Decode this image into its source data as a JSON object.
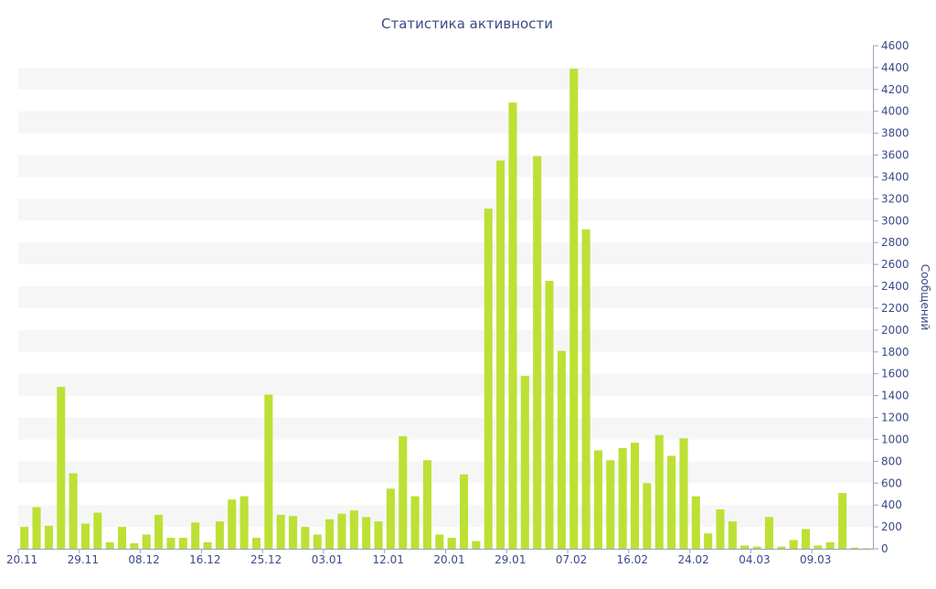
{
  "chart_data": {
    "type": "bar",
    "title": "Статистика активности",
    "xlabel": "",
    "ylabel": "Сообщений",
    "ylim": [
      0,
      4600
    ],
    "y_ticks": [
      "0",
      "200",
      "400",
      "600",
      "800",
      "1000",
      "1200",
      "1400",
      "1600",
      "1800",
      "2000",
      "2200",
      "2400",
      "2600",
      "2800",
      "3000",
      "3200",
      "3400",
      "3600",
      "3800",
      "4000",
      "4200",
      "4400",
      "4600"
    ],
    "y_axis_side": "right",
    "grid": "alternating horizontal bands",
    "legend": "none",
    "x_tick_labels": [
      {
        "label": "20.11",
        "index": 0
      },
      {
        "label": "29.11",
        "index": 5
      },
      {
        "label": "08.12",
        "index": 10
      },
      {
        "label": "16.12",
        "index": 15
      },
      {
        "label": "25.12",
        "index": 20
      },
      {
        "label": "03.01",
        "index": 25
      },
      {
        "label": "12.01",
        "index": 30
      },
      {
        "label": "20.01",
        "index": 35
      },
      {
        "label": "29.01",
        "index": 40
      },
      {
        "label": "07.02",
        "index": 45
      },
      {
        "label": "16.02",
        "index": 50
      },
      {
        "label": "24.02",
        "index": 55
      },
      {
        "label": "04.03",
        "index": 60
      },
      {
        "label": "09.03",
        "index": 65
      }
    ],
    "values": [
      200,
      380,
      210,
      1480,
      690,
      230,
      330,
      60,
      200,
      50,
      130,
      310,
      100,
      100,
      240,
      60,
      250,
      450,
      480,
      100,
      1410,
      310,
      300,
      200,
      130,
      270,
      320,
      350,
      290,
      250,
      550,
      1030,
      480,
      810,
      130,
      100,
      680,
      70,
      3110,
      3550,
      4080,
      1580,
      3590,
      2450,
      1810,
      4390,
      2920,
      900,
      810,
      920,
      970,
      600,
      1040,
      850,
      1010,
      480,
      140,
      360,
      250,
      30,
      20,
      290,
      20,
      80,
      180,
      30,
      60,
      510,
      10,
      5
    ],
    "colors": {
      "bar": "#bde035",
      "band": "#f6f6f6",
      "text": "#3a4a86",
      "axis": "#9aa0c0"
    }
  }
}
